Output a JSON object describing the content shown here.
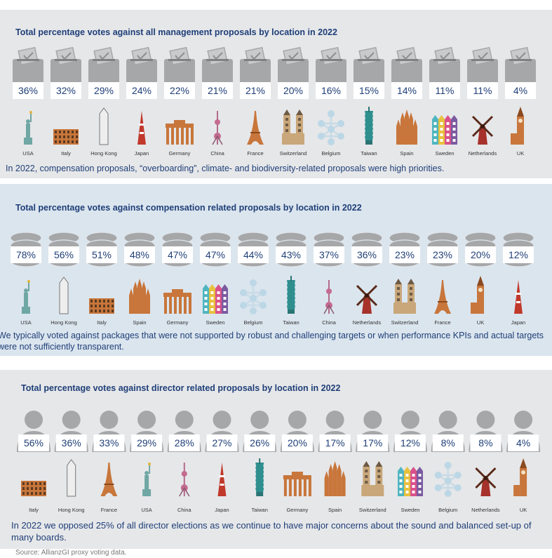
{
  "chart_data": [
    {
      "type": "bar",
      "title": "Total percentage votes against all management proposals by location in 2022",
      "categories": [
        "USA",
        "Italy",
        "Hong Kong",
        "Japan",
        "Germany",
        "China",
        "France",
        "Switzerland",
        "Belgium",
        "Taiwan",
        "Spain",
        "Sweden",
        "Netherlands",
        "UK"
      ],
      "value_labels": [
        "36%",
        "32%",
        "29%",
        "24%",
        "22%",
        "21%",
        "21%",
        "20%",
        "16%",
        "15%",
        "14%",
        "11%",
        "11%",
        "4%"
      ],
      "values": [
        36,
        32,
        29,
        24,
        22,
        21,
        21,
        20,
        16,
        15,
        14,
        11,
        11,
        4
      ],
      "icon": "ballot-box-icon",
      "note": "In 2022, compensation proposals, “overboarding”, climate- and biodiversity-related proposals were high priorities."
    },
    {
      "type": "bar",
      "title": "Total percentage votes against compensation related proposals by location in 2022",
      "categories": [
        "USA",
        "Hong Kong",
        "Italy",
        "Spain",
        "Germany",
        "Sweden",
        "Belgium",
        "Taiwan",
        "China",
        "Netherlands",
        "Switzerland",
        "France",
        "UK",
        "Japan"
      ],
      "value_labels": [
        "78%",
        "56%",
        "51%",
        "48%",
        "47%",
        "47%",
        "44%",
        "43%",
        "37%",
        "36%",
        "23%",
        "23%",
        "20%",
        "12%"
      ],
      "values": [
        78,
        56,
        51,
        48,
        47,
        47,
        44,
        43,
        37,
        36,
        23,
        23,
        20,
        12
      ],
      "icon": "coin-stack-icon",
      "note": "We typically voted against packages that were not supported by robust and challenging targets or when performance KPIs and actual targets were not sufficiently transparent."
    },
    {
      "type": "bar",
      "title": "Total percentage votes against director related proposals by location in 2022",
      "categories": [
        "Italy",
        "Hong Kong",
        "France",
        "USA",
        "China",
        "Japan",
        "Taiwan",
        "Germany",
        "Spain",
        "Switzerland",
        "Sweden",
        "Belgium",
        "Netherlands",
        "UK"
      ],
      "value_labels": [
        "56%",
        "36%",
        "33%",
        "29%",
        "28%",
        "27%",
        "26%",
        "20%",
        "17%",
        "17%",
        "12%",
        "8%",
        "8%",
        "4%"
      ],
      "values": [
        56,
        36,
        33,
        29,
        28,
        27,
        26,
        20,
        17,
        17,
        12,
        8,
        8,
        4
      ],
      "icon": "person-silhouette-icon",
      "note": "In 2022 we opposed 25% of all director elections as we continue to have major concerns about the sound and balanced set-up of many boards."
    }
  ],
  "source": "Source: AllianzGI proxy voting data.",
  "colors": {
    "title": "#1f3f78",
    "panel_gray": "#e6e7e9",
    "panel_blue": "#dbe5ee",
    "icon_gray": "#a6a7a9",
    "label_box": "#ffffff"
  },
  "landmarks": {
    "USA": "statue-of-liberty-icon",
    "Italy": "colosseum-icon",
    "Hong Kong": "skyscraper-icon",
    "Japan": "tokyo-tower-icon",
    "Germany": "brandenburg-gate-icon",
    "China": "pearl-tower-icon",
    "France": "eiffel-tower-icon",
    "Switzerland": "grossmunster-icon",
    "Belgium": "atomium-icon",
    "Taiwan": "taipei-101-icon",
    "Spain": "sagrada-familia-icon",
    "Sweden": "colorful-houses-icon",
    "Netherlands": "windmill-icon",
    "UK": "big-ben-icon"
  }
}
